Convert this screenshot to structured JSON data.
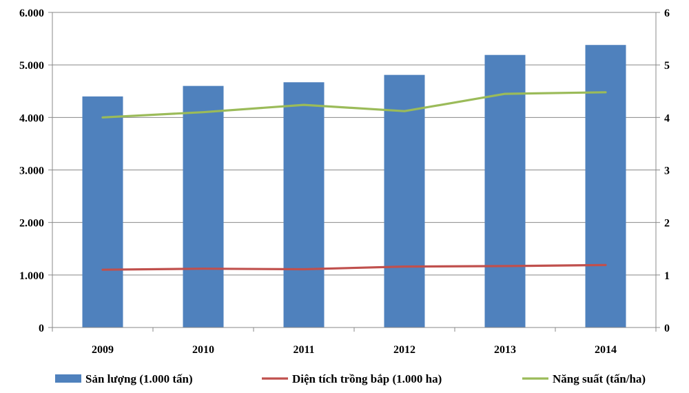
{
  "chart_data": {
    "type": "bar",
    "title": "",
    "categories": [
      "2009",
      "2010",
      "2011",
      "2012",
      "2013",
      "2014"
    ],
    "y_left": {
      "range": [
        0,
        6000
      ],
      "ticks": [
        0,
        1000,
        2000,
        3000,
        4000,
        5000,
        6000
      ],
      "tick_labels": [
        "0",
        "1.000",
        "2.000",
        "3.000",
        "4.000",
        "5.000",
        "6.000"
      ]
    },
    "y_right": {
      "range": [
        0,
        6
      ],
      "ticks": [
        0,
        1,
        2,
        3,
        4,
        5,
        6
      ],
      "tick_labels": [
        "0",
        "1",
        "2",
        "3",
        "4",
        "5",
        "6"
      ]
    },
    "grid": true,
    "legend_position": "bottom",
    "series": [
      {
        "name": "Sản lượng (1.000 tấn)",
        "kind": "bar",
        "axis": "left",
        "color": "#4f81bd",
        "values": [
          4400,
          4600,
          4670,
          4810,
          5190,
          5380
        ]
      },
      {
        "name": "Diện tích trồng bắp (1.000 ha)",
        "kind": "line",
        "axis": "left",
        "color": "#c0504d",
        "values": [
          1100,
          1120,
          1110,
          1160,
          1170,
          1190
        ]
      },
      {
        "name": "Năng suất (tấn/ha)",
        "kind": "line",
        "axis": "right",
        "color": "#9bbb59",
        "values": [
          4.0,
          4.1,
          4.24,
          4.12,
          4.45,
          4.48
        ]
      }
    ]
  }
}
